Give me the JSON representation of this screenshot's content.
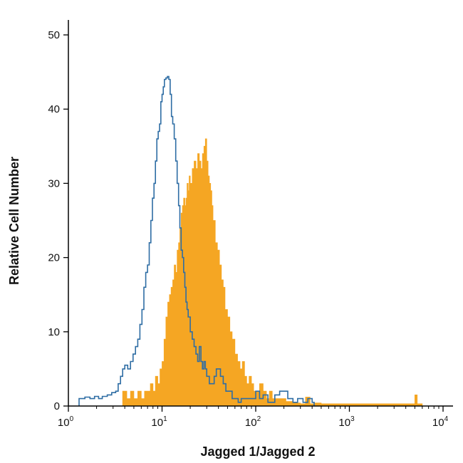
{
  "chart_data": {
    "type": "histogram",
    "title": "",
    "xlabel": "Jagged 1/Jagged 2",
    "ylabel": "Relative Cell Number",
    "x_scale": "log",
    "xlim": [
      1,
      10000
    ],
    "ylim": [
      0,
      50
    ],
    "grid": false,
    "legend": "none",
    "y_ticks": [
      0,
      10,
      20,
      30,
      40,
      50
    ],
    "x_ticks": [
      {
        "value": 1,
        "base": "10",
        "exp": "0"
      },
      {
        "value": 10,
        "base": "10",
        "exp": "1"
      },
      {
        "value": 100,
        "base": "10",
        "exp": "2"
      },
      {
        "value": 1000,
        "base": "10",
        "exp": "3"
      },
      {
        "value": 10000,
        "base": "10",
        "exp": "4"
      }
    ],
    "series": [
      {
        "style": "filled",
        "color": "#f5a623",
        "points": [
          [
            3.8,
            0
          ],
          [
            3.8,
            2
          ],
          [
            4.2,
            1
          ],
          [
            4.6,
            2
          ],
          [
            5.0,
            1
          ],
          [
            5.5,
            2
          ],
          [
            6.0,
            1
          ],
          [
            6.5,
            2
          ],
          [
            7.0,
            2
          ],
          [
            7.5,
            3
          ],
          [
            8.0,
            2
          ],
          [
            8.5,
            4
          ],
          [
            9.0,
            3
          ],
          [
            9.5,
            5
          ],
          [
            10.0,
            6
          ],
          [
            10.5,
            9
          ],
          [
            11.0,
            12
          ],
          [
            11.5,
            14
          ],
          [
            12.0,
            15
          ],
          [
            12.5,
            16
          ],
          [
            13.0,
            17
          ],
          [
            13.5,
            19
          ],
          [
            14.0,
            18
          ],
          [
            14.5,
            21
          ],
          [
            15.0,
            22
          ],
          [
            15.5,
            24
          ],
          [
            16.0,
            26
          ],
          [
            16.5,
            27
          ],
          [
            17.0,
            28
          ],
          [
            17.5,
            27
          ],
          [
            18.0,
            28
          ],
          [
            18.5,
            30
          ],
          [
            19.0,
            29
          ],
          [
            19.5,
            31
          ],
          [
            20.0,
            30
          ],
          [
            21.0,
            32
          ],
          [
            22.0,
            33
          ],
          [
            23.0,
            32
          ],
          [
            24.0,
            34
          ],
          [
            25.0,
            33
          ],
          [
            26.0,
            32
          ],
          [
            27.0,
            34
          ],
          [
            28.0,
            35
          ],
          [
            29.0,
            36
          ],
          [
            30.0,
            33
          ],
          [
            31.0,
            31
          ],
          [
            32.0,
            30
          ],
          [
            33.0,
            29
          ],
          [
            34.0,
            27
          ],
          [
            35.0,
            25
          ],
          [
            37.0,
            22
          ],
          [
            39.0,
            21
          ],
          [
            41.0,
            19
          ],
          [
            43.0,
            17
          ],
          [
            45.0,
            16
          ],
          [
            47.0,
            13
          ],
          [
            50.0,
            12
          ],
          [
            53.0,
            10
          ],
          [
            56.0,
            9
          ],
          [
            60.0,
            7
          ],
          [
            64.0,
            6
          ],
          [
            68.0,
            5
          ],
          [
            72.0,
            6
          ],
          [
            76.0,
            4
          ],
          [
            80.0,
            3
          ],
          [
            85.0,
            4
          ],
          [
            90.0,
            3
          ],
          [
            95.0,
            2
          ],
          [
            100.0,
            2
          ],
          [
            110.0,
            3
          ],
          [
            120.0,
            2
          ],
          [
            130.0,
            1
          ],
          [
            140.0,
            2
          ],
          [
            150.0,
            1
          ],
          [
            170.0,
            1
          ],
          [
            190.0,
            1
          ],
          [
            210.0,
            0.6
          ],
          [
            250.0,
            0.4
          ],
          [
            300.0,
            0.3
          ],
          [
            340.0,
            1.2
          ],
          [
            380.0,
            0.3
          ],
          [
            420.0,
            0.4
          ],
          [
            500.0,
            0.3
          ],
          [
            700.0,
            0.3
          ],
          [
            1000.0,
            0.3
          ],
          [
            2000.0,
            0.3
          ],
          [
            3000.0,
            0.3
          ],
          [
            4800.0,
            0.3
          ],
          [
            5000.0,
            1.5
          ],
          [
            5300.0,
            0.3
          ],
          [
            6000.0,
            0
          ]
        ]
      },
      {
        "style": "outline",
        "color": "#2e6da4",
        "points": [
          [
            1.3,
            0
          ],
          [
            1.3,
            1
          ],
          [
            1.5,
            1.2
          ],
          [
            1.7,
            1
          ],
          [
            1.9,
            1.3
          ],
          [
            2.1,
            1
          ],
          [
            2.3,
            1.3
          ],
          [
            2.6,
            1.5
          ],
          [
            2.9,
            1.8
          ],
          [
            3.2,
            2
          ],
          [
            3.4,
            3
          ],
          [
            3.6,
            4
          ],
          [
            3.8,
            5
          ],
          [
            4.0,
            5.5
          ],
          [
            4.3,
            5
          ],
          [
            4.6,
            6
          ],
          [
            4.9,
            7
          ],
          [
            5.2,
            8
          ],
          [
            5.5,
            9
          ],
          [
            5.8,
            11
          ],
          [
            6.1,
            13
          ],
          [
            6.4,
            16
          ],
          [
            6.7,
            18
          ],
          [
            7.0,
            19
          ],
          [
            7.3,
            22
          ],
          [
            7.6,
            25
          ],
          [
            7.9,
            28
          ],
          [
            8.2,
            30
          ],
          [
            8.5,
            33
          ],
          [
            8.8,
            36
          ],
          [
            9.1,
            37
          ],
          [
            9.4,
            38
          ],
          [
            9.7,
            41
          ],
          [
            10.0,
            42
          ],
          [
            10.3,
            43
          ],
          [
            10.6,
            44
          ],
          [
            11.0,
            44.2
          ],
          [
            11.4,
            44.4
          ],
          [
            11.8,
            44
          ],
          [
            12.2,
            42
          ],
          [
            12.6,
            39
          ],
          [
            13.0,
            38
          ],
          [
            13.5,
            36
          ],
          [
            14.0,
            33
          ],
          [
            14.5,
            30
          ],
          [
            15.0,
            27
          ],
          [
            15.5,
            24
          ],
          [
            16.0,
            21
          ],
          [
            16.5,
            20
          ],
          [
            17.0,
            18
          ],
          [
            17.5,
            16
          ],
          [
            18.0,
            14
          ],
          [
            18.5,
            13
          ],
          [
            19.0,
            12
          ],
          [
            20.0,
            10
          ],
          [
            21.0,
            9
          ],
          [
            22.0,
            8
          ],
          [
            23.0,
            7
          ],
          [
            24.0,
            6
          ],
          [
            25.0,
            8
          ],
          [
            26.0,
            6
          ],
          [
            27.0,
            5
          ],
          [
            28.0,
            6
          ],
          [
            29.0,
            5
          ],
          [
            30.0,
            4
          ],
          [
            32.0,
            3
          ],
          [
            34.0,
            3
          ],
          [
            36.0,
            4
          ],
          [
            38.0,
            5
          ],
          [
            40.0,
            5
          ],
          [
            42.0,
            4
          ],
          [
            45.0,
            3
          ],
          [
            48.0,
            2
          ],
          [
            52.0,
            2
          ],
          [
            56.0,
            1
          ],
          [
            60.0,
            1
          ],
          [
            65.0,
            0.5
          ],
          [
            70.0,
            1
          ],
          [
            80.0,
            1
          ],
          [
            95.0,
            1
          ],
          [
            100.0,
            2
          ],
          [
            110.0,
            1
          ],
          [
            120.0,
            1.5
          ],
          [
            135.0,
            0.5
          ],
          [
            160.0,
            1.5
          ],
          [
            180.0,
            2
          ],
          [
            200.0,
            2
          ],
          [
            220.0,
            1
          ],
          [
            250.0,
            0.5
          ],
          [
            280.0,
            1
          ],
          [
            320.0,
            0.5
          ],
          [
            360.0,
            1
          ],
          [
            400.0,
            0.5
          ],
          [
            420.0,
            0
          ]
        ]
      }
    ]
  }
}
